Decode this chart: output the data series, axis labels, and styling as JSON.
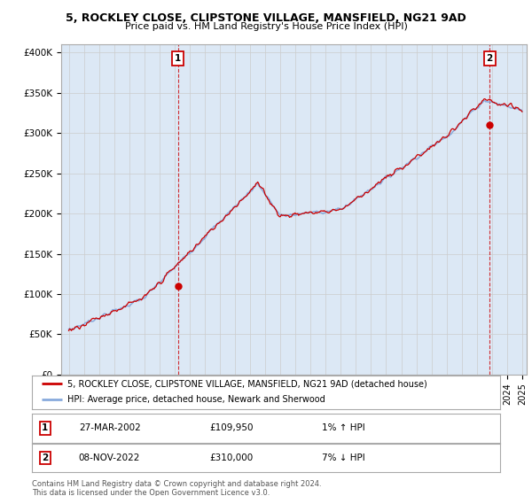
{
  "title1": "5, ROCKLEY CLOSE, CLIPSTONE VILLAGE, MANSFIELD, NG21 9AD",
  "title2": "Price paid vs. HM Land Registry's House Price Index (HPI)",
  "ylabel_ticks": [
    "£0",
    "£50K",
    "£100K",
    "£150K",
    "£200K",
    "£250K",
    "£300K",
    "£350K",
    "£400K"
  ],
  "ytick_values": [
    0,
    50000,
    100000,
    150000,
    200000,
    250000,
    300000,
    350000,
    400000
  ],
  "ylim": [
    0,
    410000
  ],
  "xlim_start": 1994.5,
  "xlim_end": 2025.3,
  "transaction1": {
    "date": "27-MAR-2002",
    "price": 109950,
    "label": "1",
    "year": 2002.23,
    "hpi_pct": "1%",
    "hpi_dir": "↑"
  },
  "transaction2": {
    "date": "08-NOV-2022",
    "price": 310000,
    "label": "2",
    "year": 2022.85,
    "hpi_pct": "7%",
    "hpi_dir": "↓"
  },
  "legend_line1": "5, ROCKLEY CLOSE, CLIPSTONE VILLAGE, MANSFIELD, NG21 9AD (detached house)",
  "legend_line2": "HPI: Average price, detached house, Newark and Sherwood",
  "footer": "Contains HM Land Registry data © Crown copyright and database right 2024.\nThis data is licensed under the Open Government Licence v3.0.",
  "line_color": "#cc0000",
  "hpi_color": "#88aadd",
  "fill_color": "#dce8f5",
  "background_color": "#ffffff",
  "grid_color": "#cccccc",
  "annotation_box_color": "#cc0000"
}
